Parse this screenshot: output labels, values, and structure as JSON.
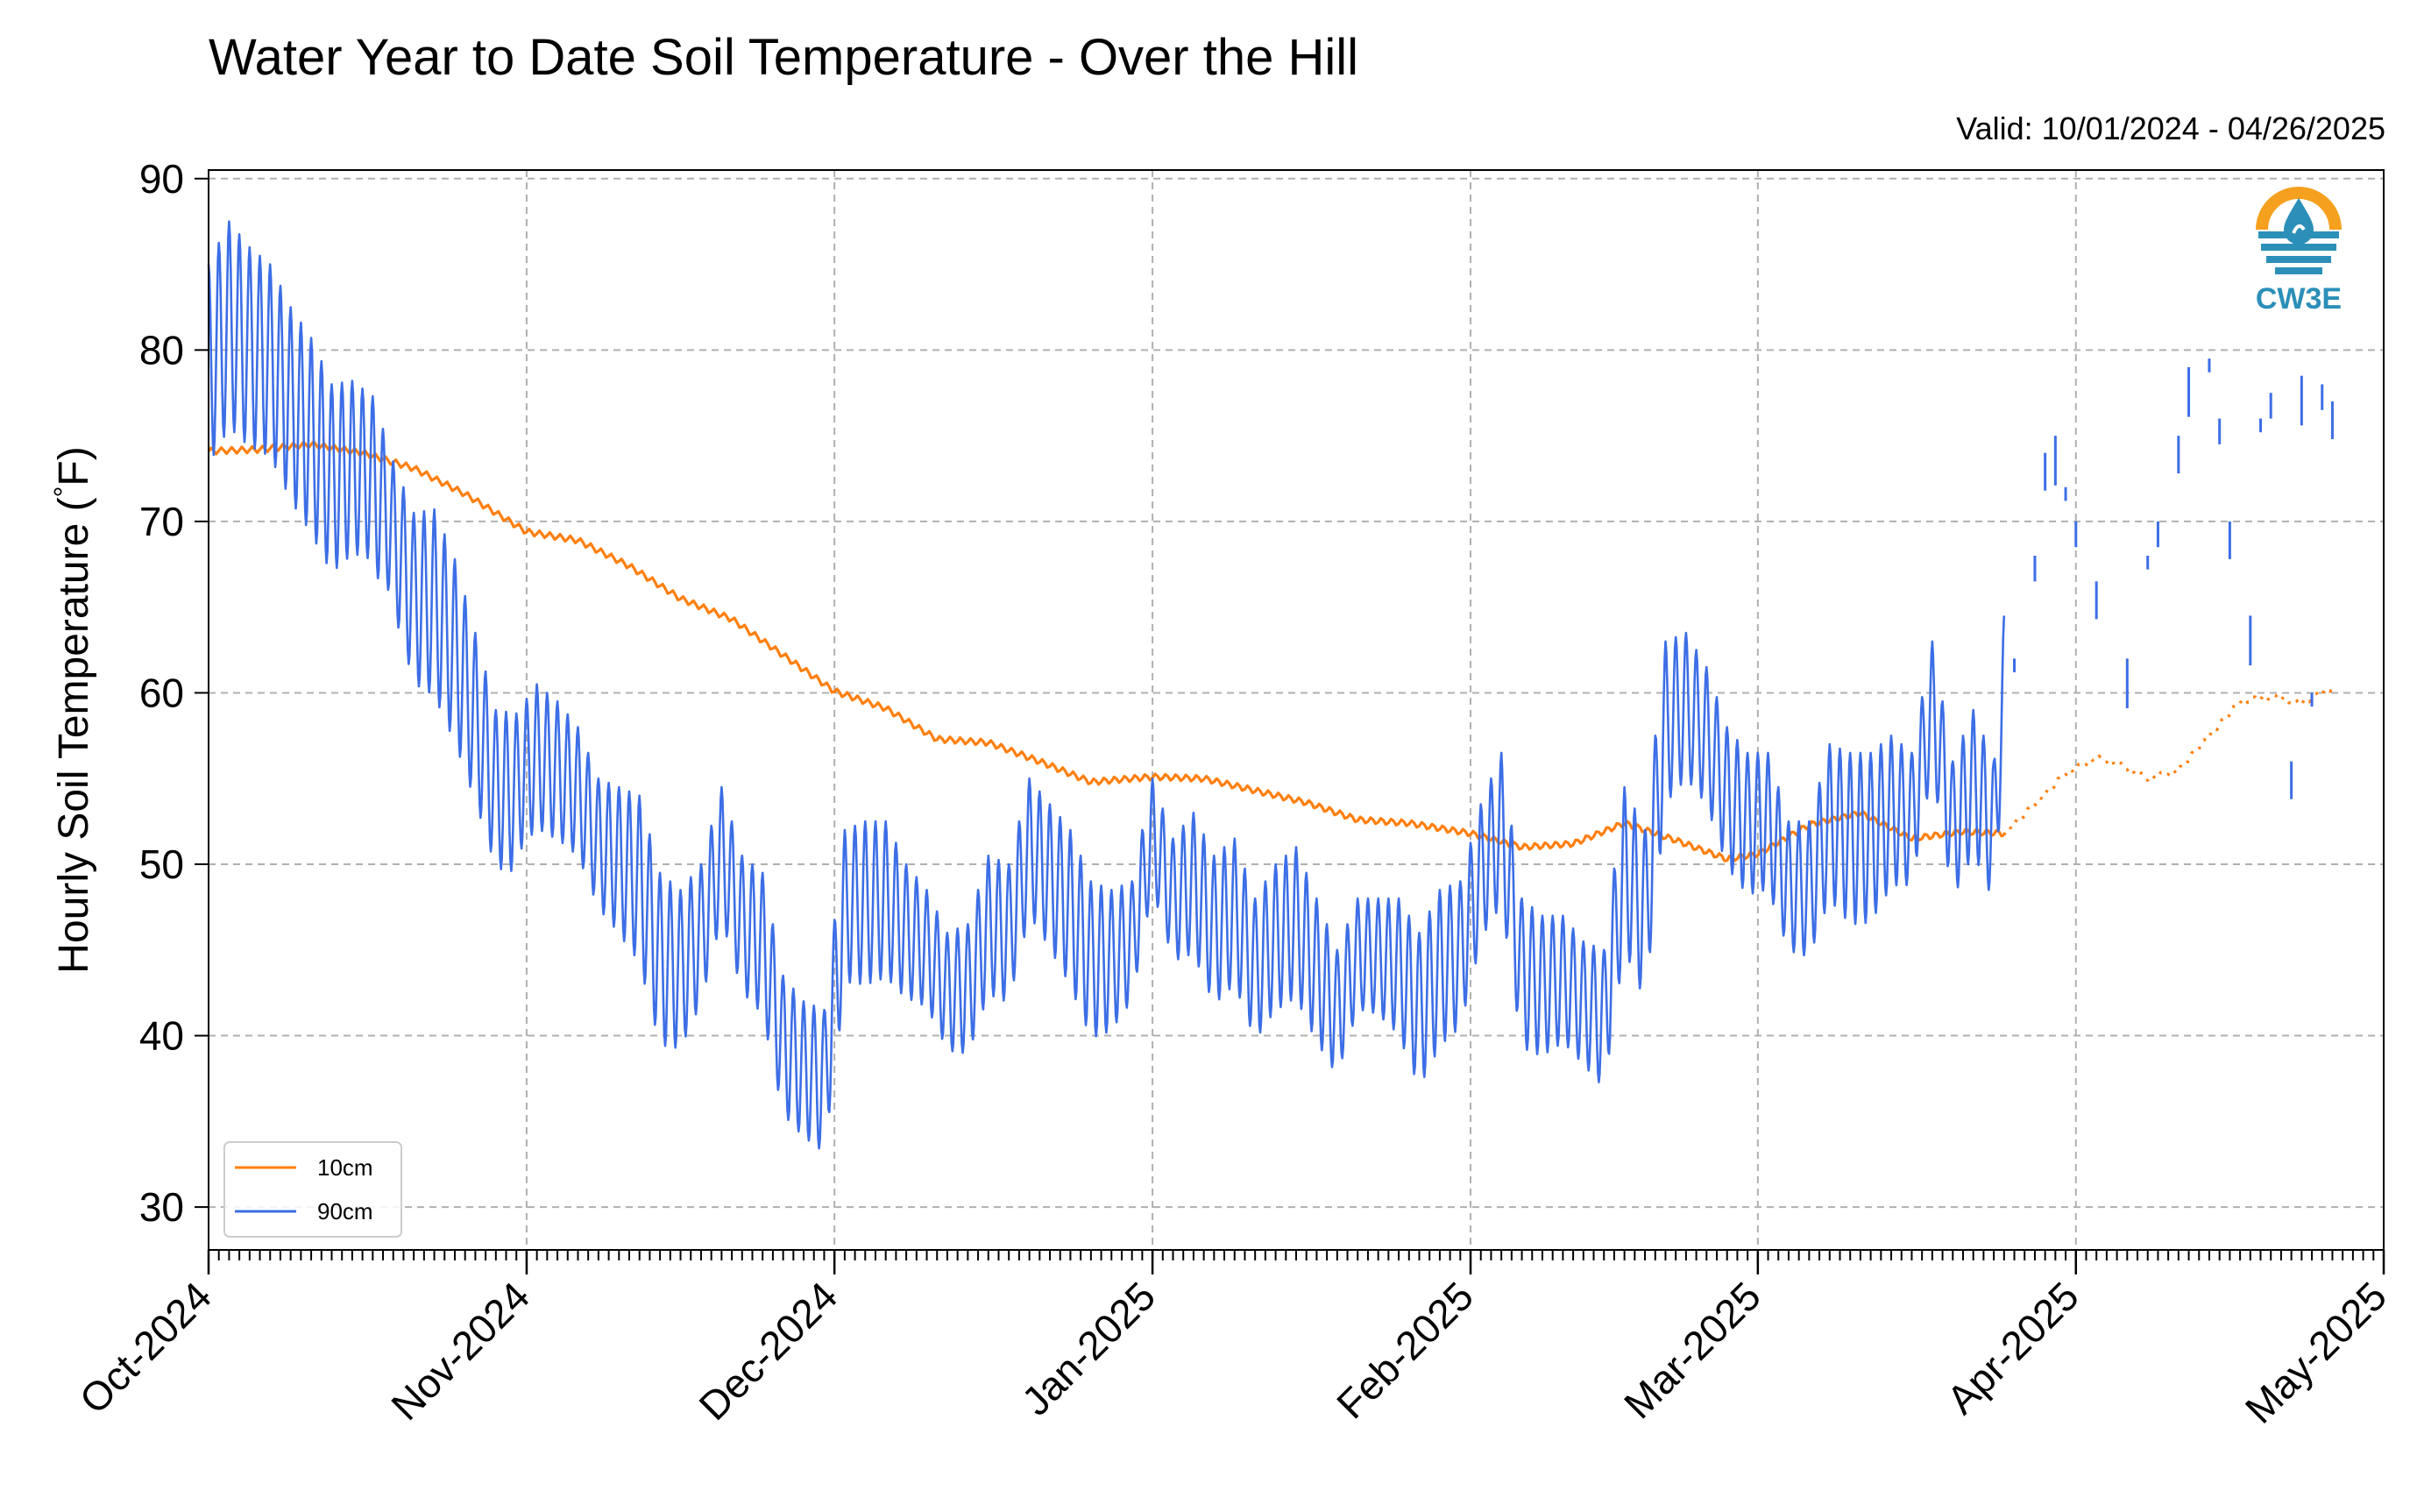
{
  "chart_data": {
    "type": "line",
    "title": "Water Year to Date Soil Temperature - Over the Hill",
    "valid_text": "Valid: 10/01/2024 - 04/26/2025",
    "xlabel": "",
    "ylabel": "Hourly Soil Temperature (°F)",
    "ylabel_parts": [
      "Hourly Soil Temperature (",
      "°",
      "F)"
    ],
    "x_ticks": [
      "Oct-2024",
      "Nov-2024",
      "Dec-2024",
      "Jan-2025",
      "Feb-2025",
      "Mar-2025",
      "Apr-2025",
      "May-2025"
    ],
    "x_range": [
      "2024-10-01",
      "2025-05-01"
    ],
    "ylim": [
      27.5,
      90.5
    ],
    "y_ticks": [
      30,
      40,
      50,
      60,
      70,
      80,
      90
    ],
    "grid": true,
    "legend_position": "lower-left",
    "logo_text": "CW3E",
    "series": [
      {
        "name": "10cm",
        "color": "#ff7f0e",
        "style": "line",
        "x": [
          "2024-10-01",
          "2024-10-06",
          "2024-10-11",
          "2024-10-16",
          "2024-10-21",
          "2024-10-26",
          "2024-11-01",
          "2024-11-06",
          "2024-11-11",
          "2024-11-16",
          "2024-11-21",
          "2024-11-26",
          "2024-12-01",
          "2024-12-06",
          "2024-12-11",
          "2024-12-16",
          "2024-12-21",
          "2024-12-26",
          "2025-01-01",
          "2025-01-06",
          "2025-01-11",
          "2025-01-16",
          "2025-01-21",
          "2025-01-26",
          "2025-02-01",
          "2025-02-06",
          "2025-02-11",
          "2025-02-16",
          "2025-02-21",
          "2025-02-26",
          "2025-03-01",
          "2025-03-06",
          "2025-03-11",
          "2025-03-16",
          "2025-03-21",
          "2025-03-25"
        ],
        "values": [
          74.1,
          74.2,
          74.5,
          74.0,
          73.1,
          71.6,
          69.4,
          68.9,
          67.4,
          65.5,
          64.3,
          62.2,
          60.1,
          59.1,
          57.3,
          57.1,
          56.0,
          54.8,
          55.1,
          55.0,
          54.3,
          53.6,
          52.6,
          52.4,
          51.8,
          51.0,
          51.2,
          52.4,
          51.4,
          50.3,
          50.6,
          52.3,
          53.0,
          51.5,
          51.9,
          51.8
        ]
      },
      {
        "name": "10cm",
        "color": "#ff7f0e",
        "style": "dotted",
        "x": [
          "2025-03-25",
          "2025-03-28",
          "2025-03-31",
          "2025-04-03",
          "2025-04-05",
          "2025-04-08",
          "2025-04-11",
          "2025-04-14",
          "2025-04-17",
          "2025-04-20",
          "2025-04-23",
          "2025-04-26"
        ],
        "values": [
          51.8,
          53.5,
          55.3,
          56.2,
          55.9,
          55.0,
          55.5,
          57.5,
          59.5,
          59.8,
          59.4,
          60.3
        ]
      },
      {
        "name": "90cm",
        "color": "#3c6ee6",
        "style": "line",
        "x": [
          "2024-10-01",
          "2024-10-03",
          "2024-10-05",
          "2024-10-07",
          "2024-10-09",
          "2024-10-11",
          "2024-10-13",
          "2024-10-15",
          "2024-10-17",
          "2024-10-19",
          "2024-10-21",
          "2024-10-23",
          "2024-10-25",
          "2024-10-27",
          "2024-10-29",
          "2024-10-31",
          "2024-11-02",
          "2024-11-04",
          "2024-11-06",
          "2024-11-08",
          "2024-11-10",
          "2024-11-12",
          "2024-11-14",
          "2024-11-16",
          "2024-11-18",
          "2024-11-20",
          "2024-11-22",
          "2024-11-24",
          "2024-11-26",
          "2024-11-28",
          "2024-11-30",
          "2024-12-02",
          "2024-12-04",
          "2024-12-06",
          "2024-12-08",
          "2024-12-10",
          "2024-12-12",
          "2024-12-14",
          "2024-12-16",
          "2024-12-18",
          "2024-12-20",
          "2024-12-22",
          "2024-12-24",
          "2024-12-26",
          "2024-12-28",
          "2024-12-30",
          "2025-01-01",
          "2025-01-03",
          "2025-01-05",
          "2025-01-07",
          "2025-01-09",
          "2025-01-11",
          "2025-01-13",
          "2025-01-15",
          "2025-01-17",
          "2025-01-19",
          "2025-01-21",
          "2025-01-23",
          "2025-01-25",
          "2025-01-27",
          "2025-01-29",
          "2025-01-31",
          "2025-02-02",
          "2025-02-04",
          "2025-02-06",
          "2025-02-08",
          "2025-02-10",
          "2025-02-12",
          "2025-02-14",
          "2025-02-16",
          "2025-02-18",
          "2025-02-20",
          "2025-02-22",
          "2025-02-24",
          "2025-02-26",
          "2025-02-28",
          "2025-03-02",
          "2025-03-04",
          "2025-03-06",
          "2025-03-08",
          "2025-03-10",
          "2025-03-12",
          "2025-03-14",
          "2025-03-16",
          "2025-03-18",
          "2025-03-20",
          "2025-03-22",
          "2025-03-24",
          "2025-03-25"
        ],
        "values": [
          85.0,
          87.5,
          86.0,
          85.0,
          82.5,
          80.7,
          78.0,
          78.2,
          77.3,
          73.5,
          70.5,
          70.7,
          67.8,
          63.5,
          59.0,
          58.8,
          60.5,
          59.5,
          58.0,
          55.0,
          54.5,
          54.0,
          49.5,
          48.5,
          50.0,
          54.5,
          50.5,
          49.5,
          43.5,
          42.0,
          41.5,
          52.0,
          52.5,
          52.5,
          50.0,
          48.5,
          46.0,
          46.5,
          50.5,
          50.0,
          55.0,
          53.5,
          52.0,
          49.0,
          48.5,
          49.0,
          55.0,
          51.5,
          53.0,
          50.5,
          51.5,
          48.0,
          50.0,
          51.0,
          48.0,
          45.0,
          48.0,
          48.0,
          48.0,
          46.0,
          48.5,
          49.0,
          53.5,
          56.5,
          48.0,
          47.0,
          47.0,
          45.5,
          45.0,
          54.5,
          52.0,
          63.0,
          63.5,
          61.5,
          58.0,
          56.5,
          56.5,
          52.5,
          52.5,
          57.0,
          56.5,
          56.5,
          57.5,
          56.5,
          63.0,
          56.0,
          59.0,
          56.0,
          64.5
        ]
      },
      {
        "name": "90cm",
        "color": "#3c6ee6",
        "style": "segments",
        "x": [
          "2025-03-26",
          "2025-03-28",
          "2025-03-29",
          "2025-03-30",
          "2025-03-31",
          "2025-04-01",
          "2025-04-03",
          "2025-04-06",
          "2025-04-08",
          "2025-04-09",
          "2025-04-11",
          "2025-04-12",
          "2025-04-14",
          "2025-04-15",
          "2025-04-16",
          "2025-04-18",
          "2025-04-19",
          "2025-04-20",
          "2025-04-22",
          "2025-04-23",
          "2025-04-24",
          "2025-04-25",
          "2025-04-26"
        ],
        "values": [
          62.0,
          68.0,
          74.0,
          75.0,
          72.0,
          70.0,
          66.5,
          62.0,
          68.0,
          70.0,
          75.0,
          79.0,
          79.5,
          76.0,
          70.0,
          64.5,
          76.0,
          77.5,
          56.0,
          78.5,
          60.0,
          78.0,
          77.0
        ]
      }
    ]
  }
}
